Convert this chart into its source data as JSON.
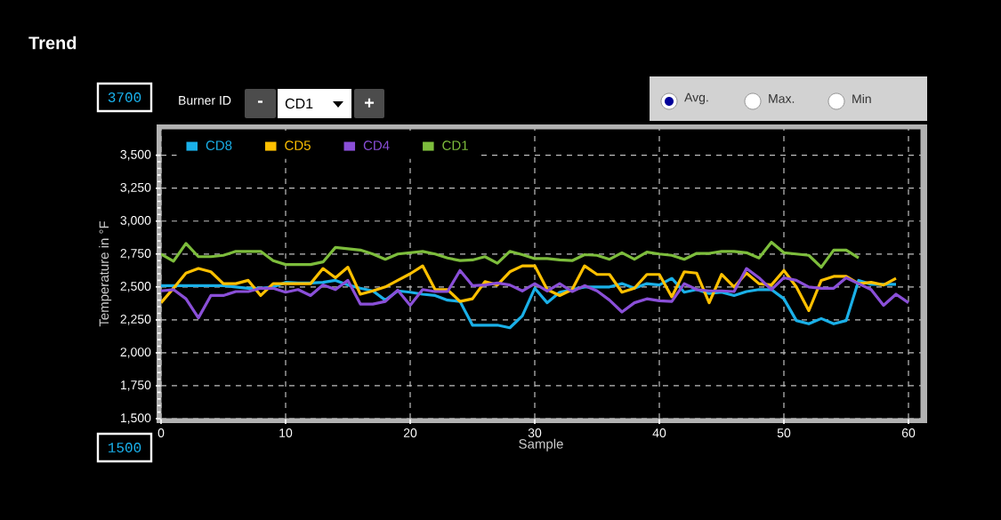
{
  "chart_data": {
    "type": "line",
    "title": "Trend",
    "xlabel": "Sample",
    "ylabel": "Temperature in °F",
    "x": [
      0,
      1,
      2,
      3,
      4,
      5,
      6,
      7,
      8,
      9,
      10,
      11,
      12,
      13,
      14,
      15,
      16,
      17,
      18,
      19,
      20,
      21,
      22,
      23,
      24,
      25,
      26,
      27,
      28,
      29,
      30,
      31,
      32,
      33,
      34,
      35,
      36,
      37,
      38,
      39,
      40,
      41,
      42,
      43,
      44,
      45,
      46,
      47,
      48,
      49,
      50,
      51,
      52,
      53,
      54,
      55,
      56,
      57,
      58,
      59,
      60
    ],
    "series": [
      {
        "name": "CD8",
        "color": "#1ab0e8",
        "values": [
          2510,
          2510,
          2510,
          2510,
          2510,
          2510,
          2500,
          2490,
          2490,
          2500,
          2535,
          2530,
          2530,
          2535,
          2550,
          2515,
          2490,
          2470,
          2400,
          2470,
          2460,
          2445,
          2435,
          2400,
          2390,
          2210,
          2210,
          2210,
          2190,
          2280,
          2490,
          2380,
          2460,
          2480,
          2500,
          2500,
          2500,
          2525,
          2490,
          2525,
          2515,
          2565,
          2460,
          2480,
          2450,
          2460,
          2435,
          2465,
          2480,
          2480,
          2410,
          2245,
          2220,
          2260,
          2220,
          2245,
          2550,
          2520,
          2520,
          2520,
          null
        ]
      },
      {
        "name": "CD5",
        "color": "#ffc000",
        "values": [
          2380,
          2490,
          2605,
          2640,
          2615,
          2525,
          2525,
          2550,
          2435,
          2525,
          2525,
          2525,
          2525,
          2640,
          2570,
          2650,
          2445,
          2470,
          2500,
          2550,
          2600,
          2660,
          2480,
          2480,
          2390,
          2410,
          2540,
          2515,
          2615,
          2660,
          2660,
          2480,
          2435,
          2480,
          2660,
          2595,
          2595,
          2460,
          2490,
          2595,
          2595,
          2425,
          2615,
          2605,
          2380,
          2595,
          2500,
          2605,
          2525,
          2515,
          2625,
          2500,
          2320,
          2550,
          2580,
          2580,
          2525,
          2535,
          2515,
          2565,
          null
        ]
      },
      {
        "name": "CD4",
        "color": "#8a4fd8",
        "values": [
          2470,
          2480,
          2410,
          2265,
          2435,
          2435,
          2465,
          2465,
          2490,
          2490,
          2460,
          2480,
          2435,
          2515,
          2480,
          2550,
          2370,
          2370,
          2390,
          2475,
          2360,
          2480,
          2465,
          2465,
          2625,
          2510,
          2515,
          2530,
          2515,
          2470,
          2525,
          2470,
          2525,
          2465,
          2510,
          2470,
          2400,
          2310,
          2380,
          2410,
          2395,
          2390,
          2525,
          2480,
          2470,
          2470,
          2465,
          2640,
          2570,
          2480,
          2570,
          2550,
          2500,
          2490,
          2490,
          2570,
          2525,
          2480,
          2360,
          2445,
          2380
        ]
      },
      {
        "name": "CD1",
        "color": "#7dbd3c",
        "values": [
          2750,
          2695,
          2830,
          2730,
          2730,
          2740,
          2770,
          2770,
          2770,
          2700,
          2670,
          2670,
          2670,
          2690,
          2800,
          2790,
          2780,
          2750,
          2710,
          2750,
          2760,
          2770,
          2750,
          2720,
          2700,
          2705,
          2730,
          2680,
          2770,
          2745,
          2715,
          2715,
          2705,
          2700,
          2745,
          2740,
          2710,
          2760,
          2710,
          2765,
          2750,
          2740,
          2710,
          2755,
          2755,
          2770,
          2770,
          2760,
          2720,
          2840,
          2760,
          2750,
          2740,
          2650,
          2780,
          2780,
          2720,
          null,
          null,
          null,
          null
        ]
      }
    ],
    "xlim": [
      0,
      61
    ],
    "ylim": [
      1500,
      3700
    ],
    "xticks": [
      0,
      10,
      20,
      30,
      40,
      50,
      60
    ],
    "yticks": [
      {
        "value": 1500,
        "label": "1,500"
      },
      {
        "value": 1750,
        "label": "1,750"
      },
      {
        "value": 2000,
        "label": "2,000"
      },
      {
        "value": 2250,
        "label": "2,250"
      },
      {
        "value": 2500,
        "label": "2,500"
      },
      {
        "value": 2750,
        "label": "2,750"
      },
      {
        "value": 3000,
        "label": "3,000"
      },
      {
        "value": 3250,
        "label": "3,250"
      },
      {
        "value": 3500,
        "label": "3,500"
      }
    ],
    "grid": true,
    "legend": "top left",
    "marker": "none",
    "line_style": "solid",
    "annotations": [
      "3700",
      "1500",
      "Burner ID",
      "-",
      "CD1",
      "+",
      "Avg.",
      "Max.",
      "Min"
    ]
  }
}
